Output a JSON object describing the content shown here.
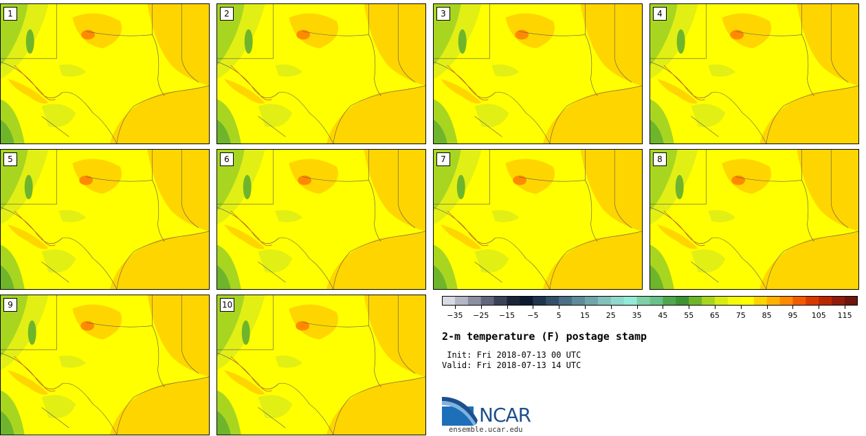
{
  "chart_data": {
    "type": "heatmap",
    "title": "2-m temperature (F) postage stamp",
    "init_label": " Init:",
    "init_value": "Fri 2018-07-13 00 UTC",
    "valid_label": "Valid:",
    "valid_value": "Fri 2018-07-13 14 UTC",
    "members": [
      "1",
      "2",
      "3",
      "4",
      "5",
      "6",
      "7",
      "8",
      "9",
      "10"
    ],
    "colorbar": {
      "min": -40,
      "max": 120,
      "step": 5,
      "colors": [
        "#d9dbe3",
        "#b4b8c4",
        "#8b8fa0",
        "#62677b",
        "#3a4256",
        "#1a2538",
        "#0b1a2f",
        "#1f354c",
        "#33506a",
        "#4a6f86",
        "#5e8b9a",
        "#70a5aa",
        "#82c0bb",
        "#8ed9cc",
        "#94ead8",
        "#7fd0a6",
        "#66c28a",
        "#4fa84d",
        "#3d9433",
        "#6fb52c",
        "#a8d620",
        "#d8ec14",
        "#f5f90a",
        "#ffff00",
        "#ffd500",
        "#ffb300",
        "#ff8a00",
        "#f25c00",
        "#d93a00",
        "#b82800",
        "#8f1c0c",
        "#6e150c"
      ],
      "tick_labels": [
        "−35",
        "−25",
        "−15",
        "−5",
        "5",
        "15",
        "25",
        "35",
        "45",
        "55",
        "65",
        "75",
        "85",
        "95",
        "105",
        "115"
      ]
    }
  },
  "branding": {
    "logo_text": "NCAR",
    "site": "ensemble.ucar.edu"
  },
  "map_colors": {
    "base": "#ffff00",
    "warm": "#ffd500",
    "mid": "#e2ef14",
    "green": "#a8d620",
    "dark_green": "#6fb52c",
    "hot": "#ff8a00",
    "border": "#555555"
  }
}
